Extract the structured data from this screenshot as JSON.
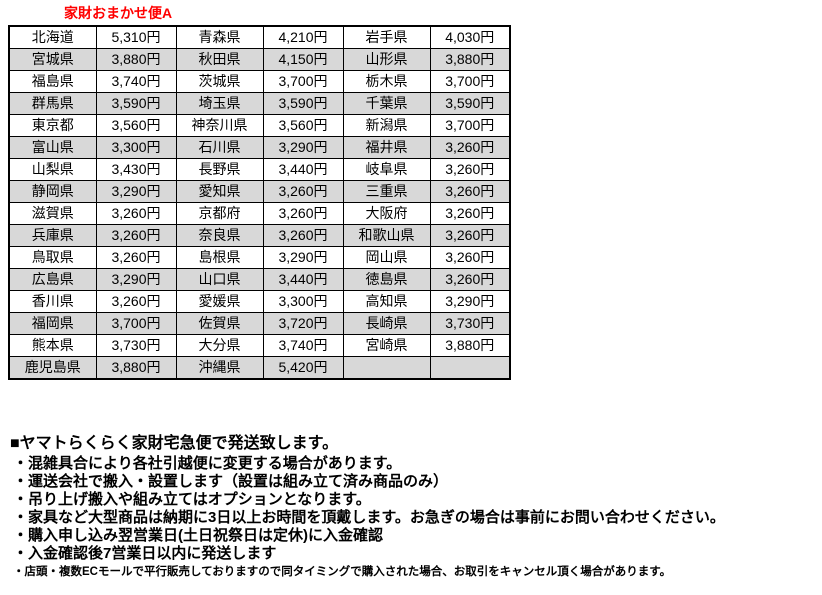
{
  "title": "家財おまかせ便A",
  "shipping_table": {
    "columns": [
      "prefecture",
      "price",
      "prefecture",
      "price",
      "prefecture",
      "price"
    ],
    "rows": [
      [
        {
          "pref": "北海道",
          "price": "5,310円"
        },
        {
          "pref": "青森県",
          "price": "4,210円"
        },
        {
          "pref": "岩手県",
          "price": "4,030円"
        }
      ],
      [
        {
          "pref": "宮城県",
          "price": "3,880円"
        },
        {
          "pref": "秋田県",
          "price": "4,150円"
        },
        {
          "pref": "山形県",
          "price": "3,880円"
        }
      ],
      [
        {
          "pref": "福島県",
          "price": "3,740円"
        },
        {
          "pref": "茨城県",
          "price": "3,700円"
        },
        {
          "pref": "栃木県",
          "price": "3,700円"
        }
      ],
      [
        {
          "pref": "群馬県",
          "price": "3,590円"
        },
        {
          "pref": "埼玉県",
          "price": "3,590円"
        },
        {
          "pref": "千葉県",
          "price": "3,590円"
        }
      ],
      [
        {
          "pref": "東京都",
          "price": "3,560円"
        },
        {
          "pref": "神奈川県",
          "price": "3,560円"
        },
        {
          "pref": "新潟県",
          "price": "3,700円"
        }
      ],
      [
        {
          "pref": "富山県",
          "price": "3,300円"
        },
        {
          "pref": "石川県",
          "price": "3,290円"
        },
        {
          "pref": "福井県",
          "price": "3,260円"
        }
      ],
      [
        {
          "pref": "山梨県",
          "price": "3,430円"
        },
        {
          "pref": "長野県",
          "price": "3,440円"
        },
        {
          "pref": "岐阜県",
          "price": "3,260円"
        }
      ],
      [
        {
          "pref": "静岡県",
          "price": "3,290円"
        },
        {
          "pref": "愛知県",
          "price": "3,260円"
        },
        {
          "pref": "三重県",
          "price": "3,260円"
        }
      ],
      [
        {
          "pref": "滋賀県",
          "price": "3,260円"
        },
        {
          "pref": "京都府",
          "price": "3,260円"
        },
        {
          "pref": "大阪府",
          "price": "3,260円"
        }
      ],
      [
        {
          "pref": "兵庫県",
          "price": "3,260円"
        },
        {
          "pref": "奈良県",
          "price": "3,260円"
        },
        {
          "pref": "和歌山県",
          "price": "3,260円"
        }
      ],
      [
        {
          "pref": "鳥取県",
          "price": "3,260円"
        },
        {
          "pref": "島根県",
          "price": "3,290円"
        },
        {
          "pref": "岡山県",
          "price": "3,260円"
        }
      ],
      [
        {
          "pref": "広島県",
          "price": "3,290円"
        },
        {
          "pref": "山口県",
          "price": "3,440円"
        },
        {
          "pref": "徳島県",
          "price": "3,260円"
        }
      ],
      [
        {
          "pref": "香川県",
          "price": "3,260円"
        },
        {
          "pref": "愛媛県",
          "price": "3,300円"
        },
        {
          "pref": "高知県",
          "price": "3,290円"
        }
      ],
      [
        {
          "pref": "福岡県",
          "price": "3,700円"
        },
        {
          "pref": "佐賀県",
          "price": "3,720円"
        },
        {
          "pref": "長崎県",
          "price": "3,730円"
        }
      ],
      [
        {
          "pref": "熊本県",
          "price": "3,730円"
        },
        {
          "pref": "大分県",
          "price": "3,740円"
        },
        {
          "pref": "宮崎県",
          "price": "3,880円"
        }
      ],
      [
        {
          "pref": "鹿児島県",
          "price": "3,880円"
        },
        {
          "pref": "沖縄県",
          "price": "5,420円"
        },
        {
          "pref": "",
          "price": ""
        }
      ]
    ]
  },
  "notes": {
    "heading": "■ヤマトらくらく家財宅急便で発送致します。",
    "bullets": [
      "・混雑具合により各社引越便に変更する場合があります。",
      "・運送会社で搬入・設置します（設置は組み立て済み商品のみ）",
      "・吊り上げ搬入や組み立てはオプションとなります。",
      "・家具など大型商品は納期に3日以上お時間を頂戴します。お急ぎの場合は事前にお問い合わせください。",
      "・購入申し込み翌営業日(土日祝祭日は定休)に入金確認",
      "・入金確認後7営業日以内に発送します"
    ],
    "small_note": "・店頭・複数ECモールで平行販売しておりますので同タイミングで購入された場合、お取引をキャンセル頂く場合があります。"
  },
  "colors": {
    "title_red": "#ff0000",
    "row_alt_gray": "#d8d8d8",
    "border": "#000000"
  }
}
